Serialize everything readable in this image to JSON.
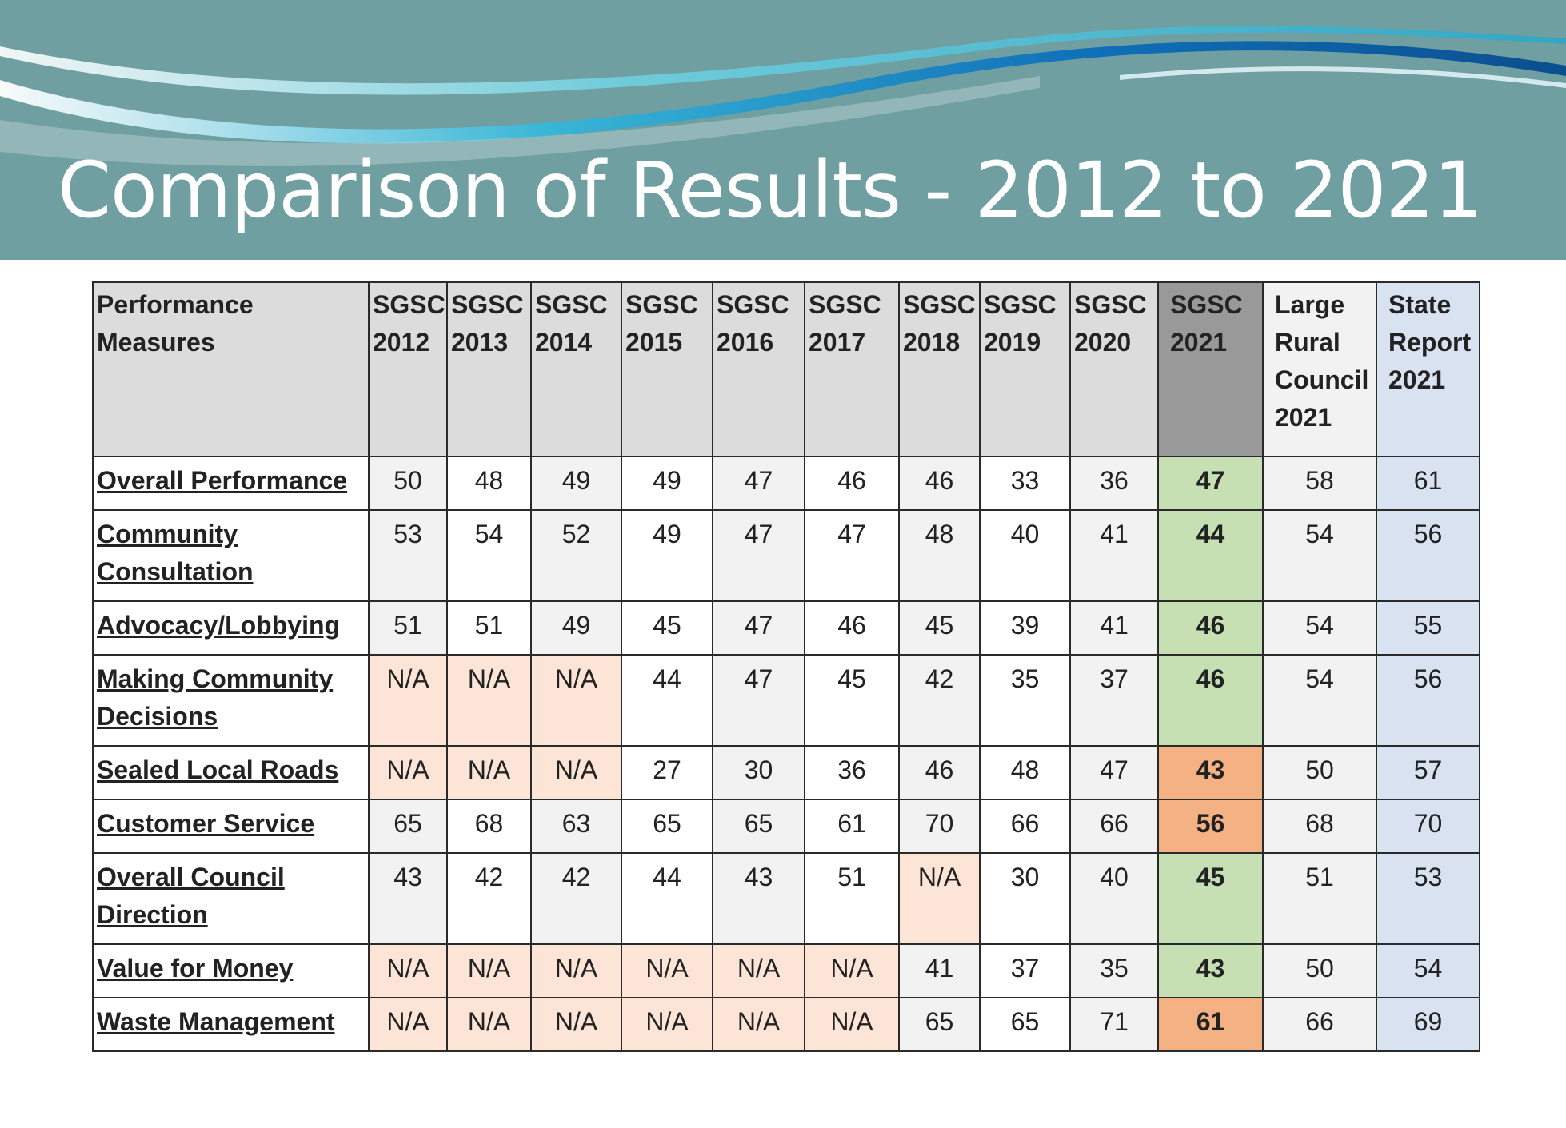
{
  "title": "Comparison of Results - 2012 to 2021",
  "colors": {
    "banner": "#6f9fa0",
    "na": "#fce4d6",
    "green": "#c6e0b4",
    "orange": "#f4b183",
    "header2021": "#999999",
    "state": "#d9e2f1"
  },
  "chart_data": {
    "type": "table",
    "columns": [
      "Performance Measures",
      "SGSC 2012",
      "SGSC 2013",
      "SGSC 2014",
      "SGSC 2015",
      "SGSC 2016",
      "SGSC 2017",
      "SGSC 2018",
      "SGSC 2019",
      "SGSC 2020",
      "SGSC 2021",
      "Large Rural Council 2021",
      "State Report 2021"
    ],
    "rows": [
      {
        "measure": "Overall Performance",
        "values": [
          "50",
          "48",
          "49",
          "49",
          "47",
          "46",
          "46",
          "33",
          "36",
          "47",
          "58",
          "61"
        ],
        "hl": "green"
      },
      {
        "measure": "Community Consultation",
        "values": [
          "53",
          "54",
          "52",
          "49",
          "47",
          "47",
          "48",
          "40",
          "41",
          "44",
          "54",
          "56"
        ],
        "hl": "green"
      },
      {
        "measure": "Advocacy/Lobbying",
        "values": [
          "51",
          "51",
          "49",
          "45",
          "47",
          "46",
          "45",
          "39",
          "41",
          "46",
          "54",
          "55"
        ],
        "hl": "green"
      },
      {
        "measure": "Making Community Decisions",
        "values": [
          "N/A",
          "N/A",
          "N/A",
          "44",
          "47",
          "45",
          "42",
          "35",
          "37",
          "46",
          "54",
          "56"
        ],
        "hl": "green"
      },
      {
        "measure": "Sealed Local Roads",
        "values": [
          "N/A",
          "N/A",
          "N/A",
          "27",
          "30",
          "36",
          "46",
          "48",
          "47",
          "43",
          "50",
          "57"
        ],
        "hl": "orange"
      },
      {
        "measure": "Customer Service",
        "values": [
          "65",
          "68",
          "63",
          "65",
          "65",
          "61",
          "70",
          "66",
          "66",
          "56",
          "68",
          "70"
        ],
        "hl": "orange"
      },
      {
        "measure": "Overall Council Direction",
        "values": [
          "43",
          "42",
          "42",
          "44",
          "43",
          "51",
          "N/A",
          "30",
          "40",
          "45",
          "51",
          "53"
        ],
        "hl": "green"
      },
      {
        "measure": "Value for Money",
        "values": [
          "N/A",
          "N/A",
          "N/A",
          "N/A",
          "N/A",
          "N/A",
          "41",
          "37",
          "35",
          "43",
          "50",
          "54"
        ],
        "hl": "green"
      },
      {
        "measure": "Waste Management",
        "values": [
          "N/A",
          "N/A",
          "N/A",
          "N/A",
          "N/A",
          "N/A",
          "65",
          "65",
          "71",
          "61",
          "66",
          "69"
        ],
        "hl": "orange"
      }
    ]
  }
}
